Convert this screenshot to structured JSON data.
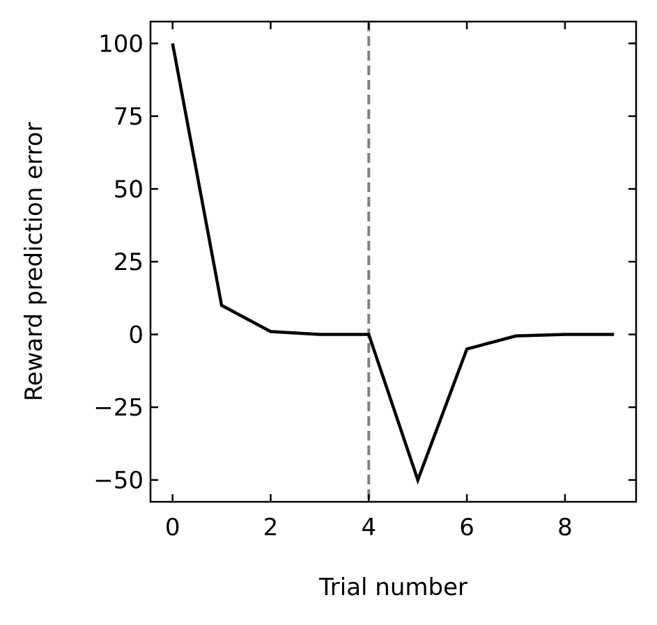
{
  "chart_data": {
    "type": "line",
    "title": "",
    "xlabel": "Trial number",
    "ylabel": "Reward prediction error",
    "xlim": [
      -0.45,
      9.45
    ],
    "ylim": [
      -57.5,
      107.5
    ],
    "xticks": [
      0,
      2,
      4,
      6,
      8
    ],
    "xtick_labels": [
      "0",
      "2",
      "4",
      "6",
      "8"
    ],
    "yticks": [
      100,
      75,
      50,
      25,
      0,
      -25,
      -50
    ],
    "ytick_labels": [
      "100",
      "75",
      "50",
      "25",
      "0",
      "−25",
      "−50"
    ],
    "grid": false,
    "legend": "none",
    "series": [
      {
        "x": [
          0,
          1,
          2,
          3,
          4,
          5,
          6,
          7,
          8,
          9
        ],
        "values": [
          100,
          10,
          1,
          0,
          0,
          -50,
          -5,
          -0.5,
          0,
          0
        ],
        "color": "#000000"
      }
    ],
    "annotations": [
      {
        "type": "vertical-dashed-line",
        "x": 4,
        "color": "#808080"
      }
    ]
  }
}
